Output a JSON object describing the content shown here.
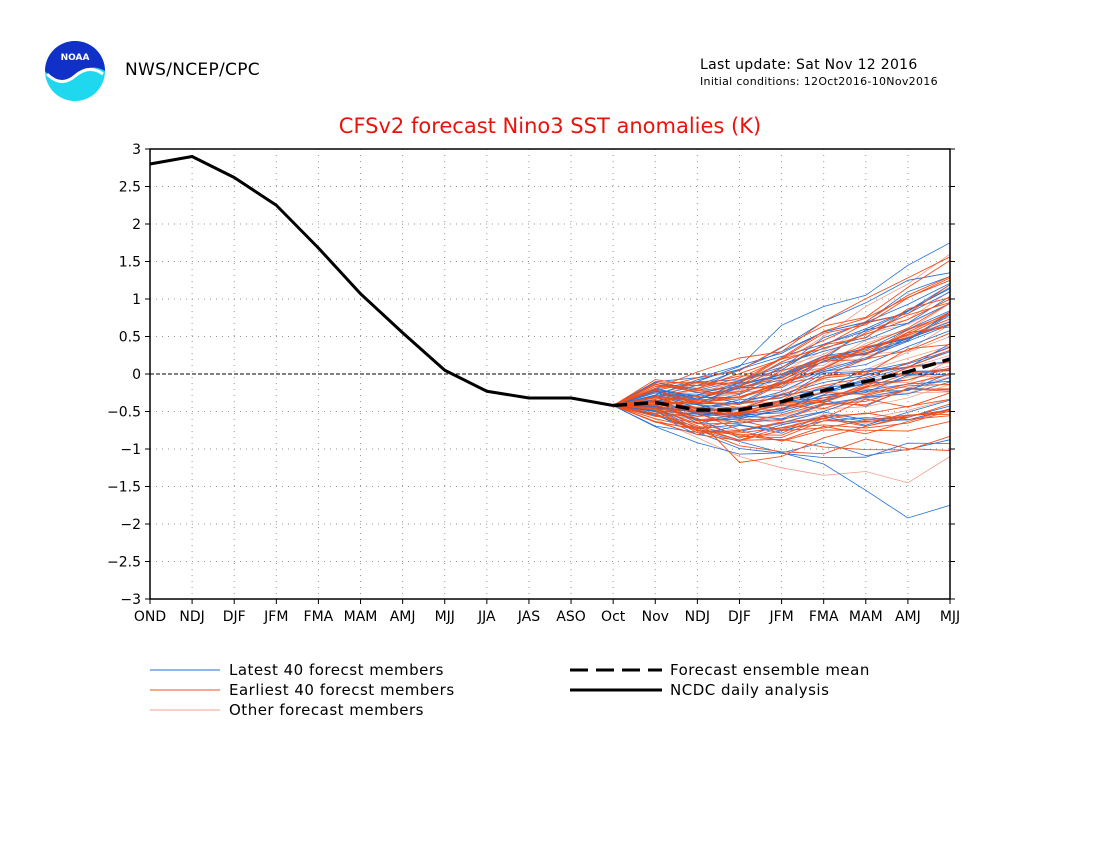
{
  "header": {
    "agency": "NWS/NCEP/CPC",
    "last_update": "Last update: Sat Nov 12 2016",
    "initial_conditions": "Initial conditions: 12Oct2016-10Nov2016",
    "logo_text": "NOAA"
  },
  "colors": {
    "title": "#e8140c",
    "latest": "#1f6fd6",
    "earliest": "#f0501e",
    "other": "#f0a08c",
    "analysis": "#000000",
    "mean": "#000000"
  },
  "chart_data": {
    "type": "line",
    "title": "CFSv2 forecast Nino3 SST anomalies (K)",
    "categories": [
      "OND",
      "NDJ",
      "DJF",
      "JFM",
      "FMA",
      "MAM",
      "AMJ",
      "MJJ",
      "JJA",
      "JAS",
      "ASO",
      "Oct",
      "Nov",
      "NDJ",
      "DJF",
      "JFM",
      "FMA",
      "MAM",
      "AMJ",
      "MJJ"
    ],
    "ylim": [
      -3,
      3
    ],
    "yticks": [
      "3",
      "2.5",
      "2",
      "1.5",
      "1",
      "0.5",
      "0",
      "−0.5",
      "−1",
      "−1.5",
      "−2",
      "−2.5",
      "−3"
    ],
    "ytick_values": [
      3,
      2.5,
      2,
      1.5,
      1,
      0.5,
      0,
      -0.5,
      -1,
      -1.5,
      -2,
      -2.5,
      -3
    ],
    "grid": true,
    "zero_line": true,
    "analysis": {
      "name": "NCDC daily analysis",
      "values": [
        2.8,
        2.9,
        2.62,
        2.25,
        1.68,
        1.07,
        0.55,
        0.05,
        -0.23,
        -0.32,
        -0.32,
        -0.42
      ]
    },
    "ensemble_mean": {
      "name": "Forecast ensemble mean",
      "start_index": 11,
      "values": [
        -0.42,
        -0.38,
        -0.48,
        -0.48,
        -0.37,
        -0.22,
        -0.1,
        0.03,
        0.2
      ]
    },
    "members": {
      "start_index": 11,
      "spread_start": 0.1,
      "spread_end": 1.15,
      "latest": {
        "name": "Latest 40 forecst members",
        "count": 40,
        "extremes": [
          [
            -0.42,
            -0.2,
            -0.1,
            0.1,
            0.65,
            0.9,
            1.05,
            1.45,
            1.75
          ],
          [
            -0.42,
            -0.55,
            -0.75,
            -0.9,
            -1.05,
            -1.2,
            -1.55,
            -1.92,
            -1.75
          ],
          [
            -0.42,
            -0.3,
            -0.15,
            0.05,
            0.35,
            0.7,
            0.95,
            1.25,
            1.35
          ]
        ]
      },
      "earliest": {
        "name": "Earliest 40 forecst members",
        "count": 40,
        "extremes": [
          [
            -0.42,
            -0.35,
            -0.6,
            -1.18,
            -1.1,
            -0.85,
            -0.7,
            -0.55,
            -0.5
          ],
          [
            -0.42,
            -0.3,
            -0.2,
            -0.05,
            0.2,
            0.45,
            0.7,
            1.05,
            1.3
          ]
        ]
      },
      "other": {
        "name": "Other forecast members",
        "count": 24,
        "extremes": [
          [
            -0.42,
            -0.6,
            -0.85,
            -1.1,
            -1.25,
            -1.35,
            -1.3,
            -1.45,
            -1.1
          ],
          [
            -0.42,
            -0.3,
            -0.25,
            -0.1,
            0.15,
            0.5,
            0.9,
            1.2,
            1.6
          ]
        ]
      }
    },
    "legend": {
      "placement": "bottom",
      "entries": [
        {
          "key": "latest",
          "label": "Latest 40 forecst members",
          "style": "thin",
          "color_key": "latest"
        },
        {
          "key": "earliest",
          "label": "Earliest 40 forecst members",
          "style": "thin",
          "color_key": "earliest"
        },
        {
          "key": "other",
          "label": "Other forecast members",
          "style": "thin",
          "color_key": "other"
        },
        {
          "key": "mean",
          "label": "Forecast ensemble mean",
          "style": "dashed",
          "color_key": "mean"
        },
        {
          "key": "analysis",
          "label": "NCDC daily analysis",
          "style": "solid",
          "color_key": "analysis"
        }
      ]
    }
  }
}
